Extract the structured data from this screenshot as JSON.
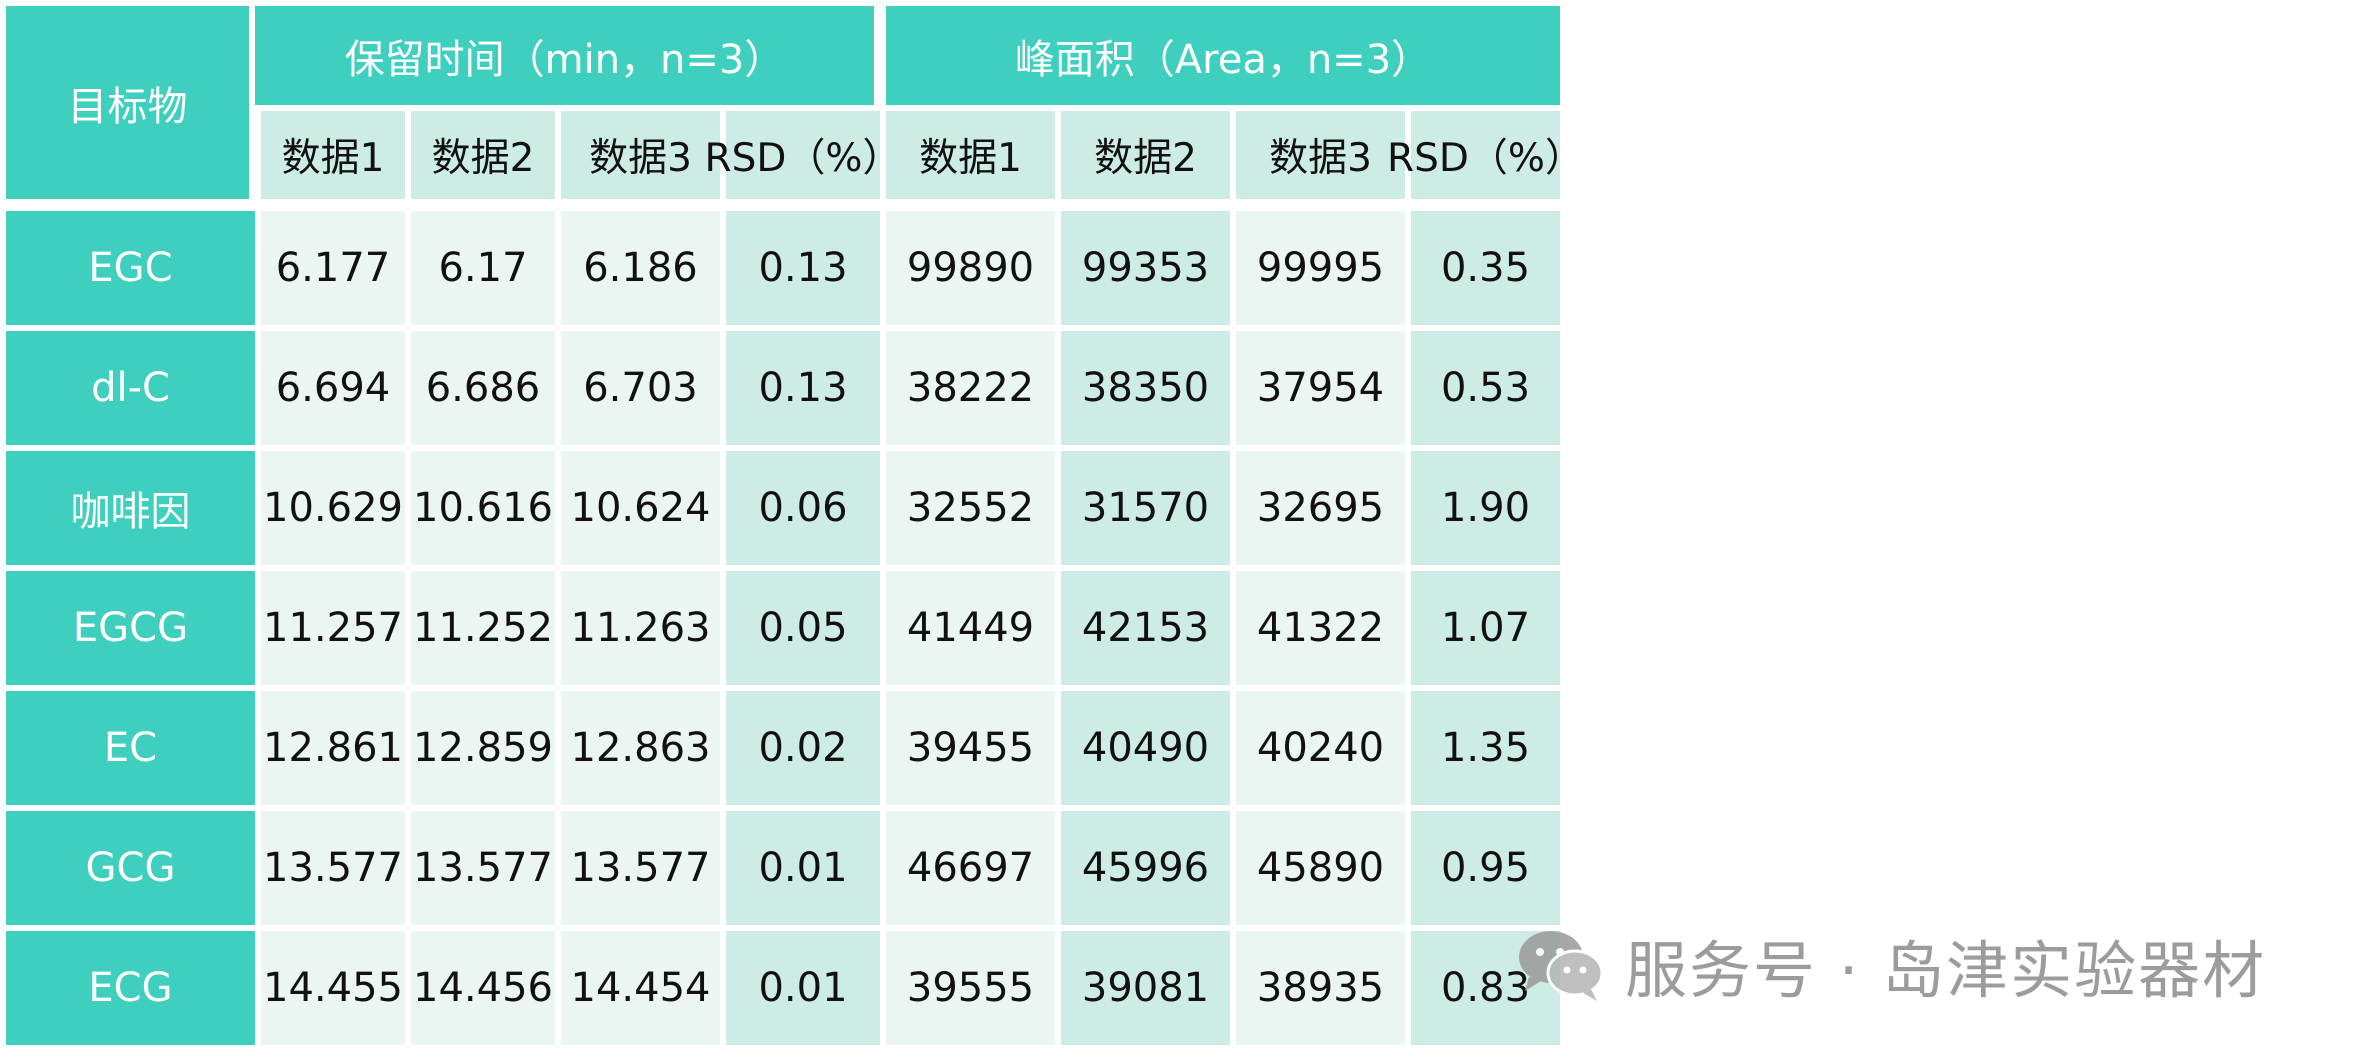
{
  "table": {
    "corner_label": "目标物",
    "group_headers": [
      "保留时间（min，n=3）",
      "峰面积（Area，n=3）"
    ],
    "sub_headers": [
      "数据1",
      "数据2",
      "数据3",
      "RSD（%）",
      "数据1",
      "数据2",
      "数据3",
      "RSD（%）"
    ],
    "rows": [
      {
        "name": "EGC",
        "values": [
          "6.177",
          "6.17",
          "6.186",
          "0.13",
          "99890",
          "99353",
          "99995",
          "0.35"
        ]
      },
      {
        "name": "dl-C",
        "values": [
          "6.694",
          "6.686",
          "6.703",
          "0.13",
          "38222",
          "38350",
          "37954",
          "0.53"
        ]
      },
      {
        "name": "咖啡因",
        "values": [
          "10.629",
          "10.616",
          "10.624",
          "0.06",
          "32552",
          "31570",
          "32695",
          "1.90"
        ]
      },
      {
        "name": "EGCG",
        "values": [
          "11.257",
          "11.252",
          "11.263",
          "0.05",
          "41449",
          "42153",
          "41322",
          "1.07"
        ]
      },
      {
        "name": "EC",
        "values": [
          "12.861",
          "12.859",
          "12.863",
          "0.02",
          "39455",
          "40490",
          "40240",
          "1.35"
        ]
      },
      {
        "name": "GCG",
        "values": [
          "13.577",
          "13.577",
          "13.577",
          "0.01",
          "46697",
          "45996",
          "45890",
          "0.95"
        ]
      },
      {
        "name": "ECG",
        "values": [
          "14.455",
          "14.456",
          "14.454",
          "0.01",
          "39555",
          "39081",
          "38935",
          "0.83"
        ]
      }
    ]
  },
  "watermark": {
    "icon": "wechat-icon",
    "text": "服务号 · 岛津实验器材"
  }
}
